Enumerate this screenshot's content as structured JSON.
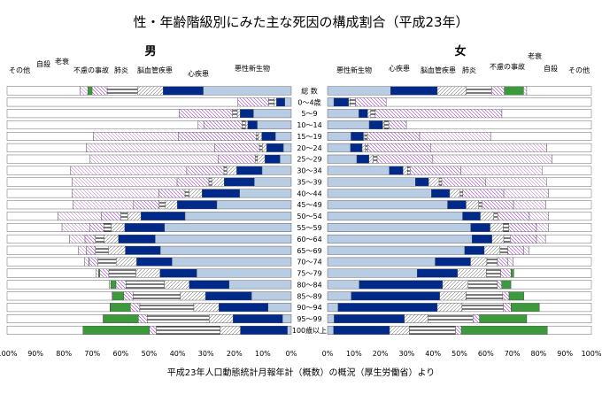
{
  "title": "性・年齢階級別にみた主な死因の構成割合（平成23年）",
  "source": "平成23年人口動態統計月報年計（概数）の概況（厚生労働省）より",
  "colors": {
    "cancer": "#b8cce4",
    "heart": "#002a8a",
    "pneumonia": "#ffffff",
    "cerebro": "#ffffff",
    "accident": "#ffffff",
    "senility": "#3c9a3c",
    "suicide": "#ffffff",
    "other": "#ffffff",
    "stroke_line": "#444444",
    "hatch_accident": "#b19cd9"
  },
  "chart_data": [
    {
      "type": "bar",
      "panel": "男",
      "orientation": "horizontal",
      "direction": "right-to-left",
      "xlim": [
        0,
        100
      ],
      "xticks": [
        "100%",
        "90%",
        "80%",
        "70%",
        "60%",
        "50%",
        "40%",
        "30%",
        "20%",
        "10%",
        "0%"
      ],
      "legend_labels": [
        "その他",
        "自殺",
        "老衰",
        "不慮の事故",
        "肺炎",
        "脳血管疾患",
        "心疾患",
        "悪性新生物"
      ],
      "categories": [
        "総 数",
        "0～4歳",
        "5～9",
        "10～14",
        "15～19",
        "20～24",
        "25～29",
        "30～34",
        "35～39",
        "40～44",
        "45～49",
        "50～54",
        "55～59",
        "60～64",
        "65～69",
        "70～74",
        "75～79",
        "80～84",
        "85～89",
        "90～94",
        "95～99",
        "100歳以上"
      ],
      "series": [
        {
          "name": "悪性新生物",
          "key": "cancer",
          "values": [
            31.0,
            2.3,
            13.3,
            12.0,
            5.6,
            2.8,
            4.0,
            10.3,
            13.0,
            18.2,
            26.2,
            37.4,
            44.6,
            47.9,
            46.1,
            42.0,
            33.3,
            21.9,
            14.0,
            8.2,
            3.1,
            1.4
          ]
        },
        {
          "name": "心疾患",
          "key": "heart",
          "values": [
            14.1,
            2.9,
            4.7,
            3.3,
            4.8,
            5.9,
            5.3,
            8.9,
            10.6,
            13.2,
            13.9,
            15.5,
            14.0,
            12.9,
            12.3,
            12.4,
            12.9,
            14.0,
            16.2,
            17.3,
            17.4,
            16.5
          ]
        },
        {
          "name": "脳血管疾患",
          "key": "cerebro",
          "values": [
            9.0,
            0.8,
            1.0,
            0.8,
            1.3,
            1.5,
            2.6,
            3.5,
            4.4,
            4.6,
            4.2,
            4.7,
            4.8,
            5.0,
            6.0,
            7.2,
            8.5,
            8.8,
            8.8,
            8.8,
            8.4,
            7.1
          ]
        },
        {
          "name": "肺炎",
          "key": "pneumonia",
          "values": [
            10.7,
            2.0,
            1.7,
            1.2,
            0.7,
            1.0,
            0.8,
            1.0,
            1.0,
            1.4,
            2.2,
            2.4,
            2.6,
            3.1,
            4.5,
            6.4,
            9.5,
            13.5,
            16.7,
            19.0,
            21.8,
            22.5
          ]
        },
        {
          "name": "不慮の事故",
          "key": "accident",
          "values": [
            5.3,
            10.8,
            18.8,
            13.5,
            27.4,
            15.7,
            13.1,
            13.1,
            11.2,
            9.2,
            9.0,
            6.8,
            4.8,
            3.7,
            3.2,
            3.1,
            3.2,
            3.5,
            3.3,
            3.3,
            3.1,
            2.4
          ]
        },
        {
          "name": "老衰",
          "key": "senility",
          "values": [
            1.5,
            0.0,
            0.0,
            0.0,
            0.0,
            0.0,
            0.0,
            0.0,
            0.0,
            0.0,
            0.0,
            0.0,
            0.0,
            0.0,
            0.0,
            0.1,
            0.4,
            1.8,
            3.8,
            7.1,
            12.3,
            23.4
          ]
        },
        {
          "name": "自殺",
          "key": "suicide",
          "values": [
            2.7,
            0.0,
            0.0,
            2.0,
            29.8,
            45.2,
            45.0,
            41.0,
            36.9,
            30.6,
            21.4,
            15.3,
            9.9,
            5.4,
            2.9,
            1.6,
            1.0,
            0.5,
            0.3,
            0.1,
            0.1,
            0.0
          ]
        },
        {
          "name": "その他",
          "key": "other",
          "values": [
            25.7,
            81.2,
            60.5,
            67.2,
            30.4,
            27.9,
            29.2,
            22.2,
            22.9,
            22.8,
            23.1,
            17.9,
            19.3,
            22.0,
            25.0,
            27.2,
            31.2,
            36.0,
            36.9,
            36.2,
            33.8,
            26.7
          ]
        }
      ]
    },
    {
      "type": "bar",
      "panel": "女",
      "orientation": "horizontal",
      "direction": "left-to-right",
      "xlim": [
        0,
        100
      ],
      "xticks": [
        "0%",
        "10%",
        "20%",
        "30%",
        "40%",
        "50%",
        "60%",
        "70%",
        "80%",
        "90%",
        "100%"
      ],
      "legend_labels": [
        "悪性新生物",
        "心疾患",
        "脳血管疾患",
        "肺炎",
        "不慮の事故",
        "老衰",
        "自殺",
        "その他"
      ],
      "categories": [
        "総 数",
        "0～4歳",
        "5～9",
        "10～14",
        "15～19",
        "20～24",
        "25～29",
        "30～34",
        "35～39",
        "40～44",
        "45～49",
        "50～54",
        "55～59",
        "60～64",
        "65～69",
        "70～74",
        "75～79",
        "80～84",
        "85～89",
        "90～94",
        "95～99",
        "100歳以上"
      ],
      "series": [
        {
          "name": "悪性新生物",
          "key": "cancer",
          "values": [
            23.9,
            2.4,
            11.9,
            15.8,
            8.9,
            8.7,
            11.1,
            23.4,
            33.3,
            39.4,
            45.5,
            51.2,
            54.3,
            54.8,
            52.0,
            40.8,
            34.0,
            12.0,
            9.0,
            4.0,
            2.5,
            2.3
          ]
        },
        {
          "name": "心疾患",
          "key": "heart",
          "values": [
            17.7,
            5.6,
            3.3,
            5.1,
            4.7,
            4.4,
            4.6,
            5.2,
            5.0,
            6.9,
            7.0,
            6.7,
            7.3,
            7.5,
            7.4,
            13.4,
            15.3,
            31.6,
            33.5,
            37.6,
            26.6,
            21.2
          ]
        },
        {
          "name": "脳血管疾患",
          "key": "cerebro",
          "values": [
            11.0,
            0.5,
            1.2,
            0.6,
            0.5,
            1.3,
            1.6,
            1.7,
            4.0,
            4.0,
            4.8,
            5.1,
            5.0,
            4.5,
            6.0,
            6.2,
            10.9,
            9.7,
            10.0,
            9.4,
            9.0,
            7.5
          ]
        },
        {
          "name": "肺炎",
          "key": "pneumonia",
          "values": [
            9.6,
            2.1,
            1.7,
            1.7,
            1.0,
            0.8,
            1.5,
            1.0,
            1.0,
            1.0,
            1.2,
            1.5,
            2.1,
            2.4,
            2.9,
            4.0,
            5.4,
            11.1,
            13.9,
            15.6,
            17.0,
            17.5
          ]
        },
        {
          "name": "不慮の事故",
          "key": "accident",
          "values": [
            4.8,
            11.6,
            48.0,
            6.7,
            19.8,
            23.8,
            21.1,
            19.2,
            16.7,
            15.5,
            12.0,
            12.0,
            10.5,
            10.0,
            6.0,
            4.0,
            4.0,
            1.6,
            2.4,
            3.0,
            2.5,
            2.2
          ]
        },
        {
          "name": "老衰",
          "key": "senility",
          "values": [
            7.3,
            0.0,
            0.0,
            0.0,
            0.0,
            0.0,
            0.0,
            0.0,
            0.0,
            0.0,
            0.0,
            0.0,
            0.0,
            0.0,
            0.0,
            0.0,
            1.0,
            3.5,
            5.6,
            10.7,
            17.9,
            32.6
          ]
        },
        {
          "name": "自殺",
          "key": "suicide",
          "values": [
            1.2,
            0.0,
            0.0,
            0.0,
            26.9,
            44.1,
            45.2,
            30.8,
            23.0,
            16.9,
            12.2,
            7.3,
            4.6,
            3.4,
            2.0,
            2.0,
            0.0,
            0.0,
            0.0,
            0.0,
            0.0,
            0.0
          ]
        },
        {
          "name": "その他",
          "key": "other",
          "values": [
            24.5,
            77.8,
            33.9,
            70.1,
            38.2,
            16.9,
            14.9,
            18.7,
            17.0,
            16.3,
            17.3,
            16.2,
            16.2,
            17.4,
            23.7,
            29.6,
            29.4,
            30.5,
            25.6,
            19.7,
            24.5,
            16.7
          ]
        }
      ]
    }
  ]
}
